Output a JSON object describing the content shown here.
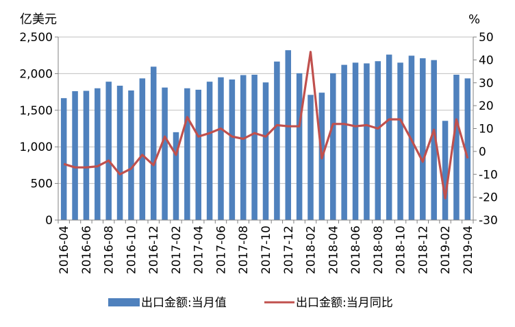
{
  "chart_data": {
    "type": "bar",
    "y_left_unit": "亿美元",
    "y_right_unit": "%",
    "y_left_ticks": [
      "0",
      "500",
      "1,000",
      "1,500",
      "2,000",
      "2,500"
    ],
    "y_right_ticks": [
      "-30",
      "-20",
      "-10",
      "0",
      "10",
      "20",
      "30",
      "40",
      "50"
    ],
    "ylim_left": [
      0,
      2500
    ],
    "ylim_right": [
      -30,
      50
    ],
    "categories": [
      "2016-04",
      "2016-05",
      "2016-06",
      "2016-07",
      "2016-08",
      "2016-09",
      "2016-10",
      "2016-11",
      "2016-12",
      "2017-01",
      "2017-02",
      "2017-03",
      "2017-04",
      "2017-05",
      "2017-06",
      "2017-07",
      "2017-08",
      "2017-09",
      "2017-10",
      "2017-11",
      "2017-12",
      "2018-01",
      "2018-02",
      "2018-03",
      "2018-04",
      "2018-05",
      "2018-06",
      "2018-07",
      "2018-08",
      "2018-09",
      "2018-10",
      "2018-11",
      "2018-12",
      "2019-01",
      "2019-02",
      "2019-03",
      "2019-04"
    ],
    "tick_labels": [
      "2016-04",
      "2016-06",
      "2016-08",
      "2016-10",
      "2016-12",
      "2017-02",
      "2017-04",
      "2017-06",
      "2017-08",
      "2017-10",
      "2017-12",
      "2018-02",
      "2018-04",
      "2018-06",
      "2018-08",
      "2018-10",
      "2018-12",
      "2019-02",
      "2019-04"
    ],
    "series": [
      {
        "name": "出口金额:当月值",
        "type": "bar",
        "axis": "left",
        "color": "#4f81bd",
        "values": [
          1665,
          1760,
          1765,
          1800,
          1890,
          1835,
          1770,
          1935,
          2095,
          1810,
          1200,
          1800,
          1780,
          1890,
          1950,
          1920,
          1980,
          1985,
          1880,
          2165,
          2320,
          2005,
          1710,
          1740,
          2005,
          2120,
          2150,
          2140,
          2170,
          2260,
          2150,
          2245,
          2210,
          2185,
          1355,
          1985,
          1935
        ]
      },
      {
        "name": "出口金额:当月同比",
        "type": "line",
        "axis": "right",
        "color": "#c0504d",
        "values": [
          -5.5,
          -7,
          -7,
          -6.5,
          -4,
          -10,
          -7.5,
          -1.5,
          -6,
          6.5,
          -1.5,
          15,
          6.5,
          8,
          10,
          6.5,
          5.5,
          8,
          6.5,
          11.5,
          11,
          11,
          43.5,
          -3,
          12,
          12,
          11,
          11.5,
          10,
          14,
          14,
          5,
          -4.5,
          9.5,
          -20.5,
          14,
          -3
        ]
      }
    ],
    "grid": "horizontal",
    "legend_position": "bottom"
  }
}
